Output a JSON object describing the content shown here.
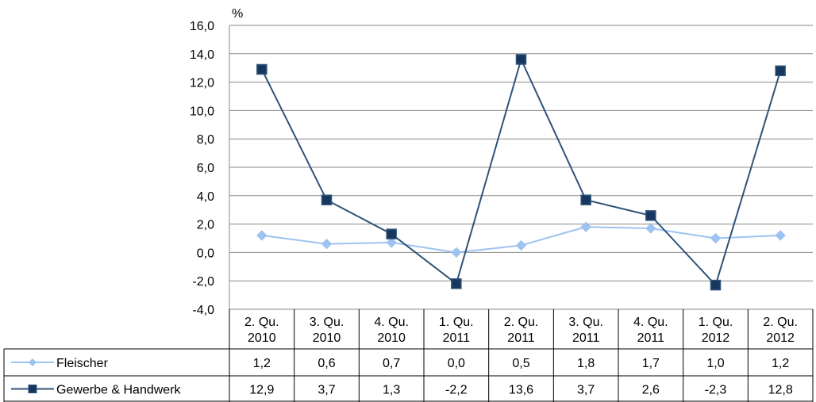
{
  "chart_data": {
    "type": "line",
    "unit_label": "%",
    "ylim": [
      -4.0,
      16.0
    ],
    "ytick_step": 2.0,
    "grid": true,
    "categories": [
      [
        "2. Qu.",
        "2010"
      ],
      [
        "3. Qu.",
        "2010"
      ],
      [
        "4. Qu.",
        "2010"
      ],
      [
        "1. Qu.",
        "2011"
      ],
      [
        "2. Qu.",
        "2011"
      ],
      [
        "3. Qu.",
        "2011"
      ],
      [
        "4. Qu.",
        "2011"
      ],
      [
        "1. Qu.",
        "2012"
      ],
      [
        "2. Qu.",
        "2012"
      ]
    ],
    "series": [
      {
        "name": "Fleischer",
        "color": "#9DC3F0",
        "marker": "diamond",
        "values": [
          1.2,
          0.6,
          0.7,
          0.0,
          0.5,
          1.8,
          1.7,
          1.0,
          1.2
        ]
      },
      {
        "name": "Gewerbe & Handwerk",
        "color": "#2F5378",
        "marker_fill": "#17375E",
        "marker": "square",
        "values": [
          12.9,
          3.7,
          1.3,
          -2.2,
          13.6,
          3.7,
          2.6,
          -2.3,
          12.8
        ]
      }
    ],
    "legend": "data-table-rows"
  }
}
